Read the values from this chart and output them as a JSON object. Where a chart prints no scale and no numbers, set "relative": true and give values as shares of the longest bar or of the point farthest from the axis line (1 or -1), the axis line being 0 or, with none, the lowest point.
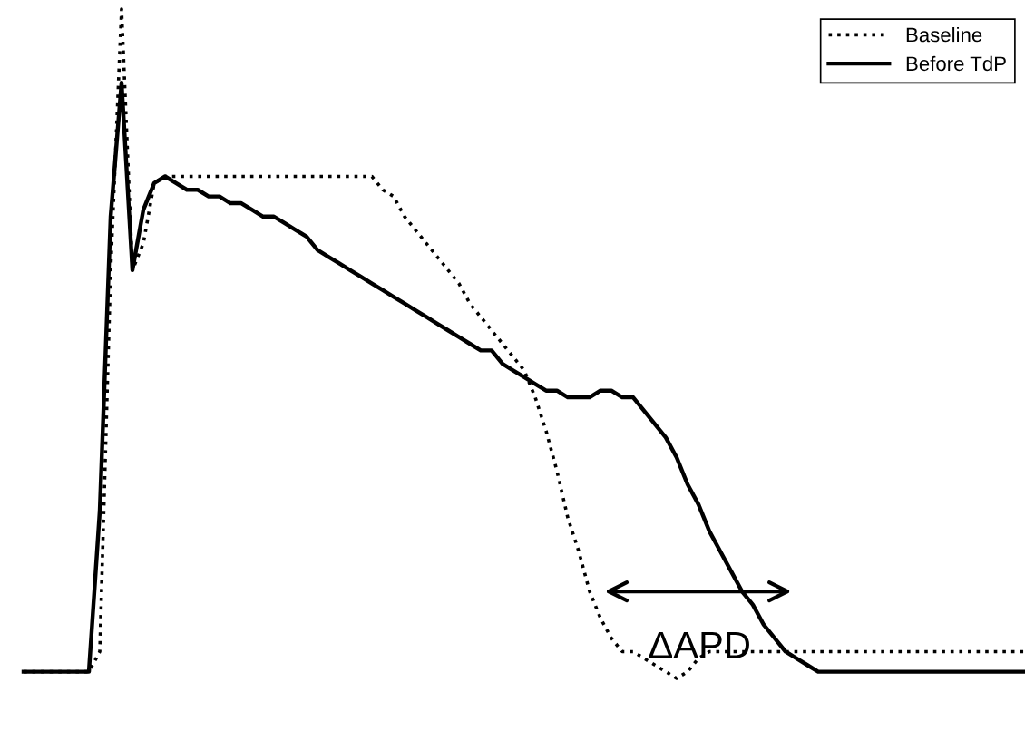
{
  "chart_data": {
    "type": "line",
    "relative": true,
    "categories": [
      null,
      null,
      null,
      null,
      null,
      null,
      null,
      null,
      null,
      null,
      null,
      null,
      null,
      null,
      null,
      null,
      null,
      null,
      null,
      null,
      null,
      null,
      null,
      null,
      null,
      null,
      null,
      null,
      null,
      null,
      null,
      null,
      null,
      null,
      null,
      null,
      null,
      null,
      null,
      null,
      null,
      null,
      null,
      null,
      null,
      null,
      null,
      null,
      null,
      null,
      null,
      null,
      null,
      null,
      null,
      null,
      null,
      null,
      null,
      null,
      null,
      null,
      null,
      null,
      null,
      null,
      null,
      null,
      null,
      null,
      null,
      null,
      null,
      null,
      null,
      null,
      null,
      null,
      null,
      null,
      null,
      null,
      null,
      null,
      null,
      null,
      null,
      null,
      null,
      null,
      null,
      null,
      null
    ],
    "series": [
      {
        "name": "Baseline",
        "color": "#000000",
        "line_style": "dotted",
        "values": [
          0.01,
          0.01,
          0.01,
          0.01,
          0.01,
          0.01,
          0.01,
          0.04,
          0.61,
          1.0,
          0.61,
          0.65,
          0.74,
          0.75,
          0.75,
          0.75,
          0.75,
          0.75,
          0.75,
          0.75,
          0.75,
          0.75,
          0.75,
          0.75,
          0.75,
          0.75,
          0.75,
          0.75,
          0.75,
          0.75,
          0.75,
          0.75,
          0.75,
          0.73,
          0.72,
          0.69,
          0.67,
          0.65,
          0.63,
          0.61,
          0.59,
          0.56,
          0.54,
          0.52,
          0.5,
          0.48,
          0.46,
          0.42,
          0.37,
          0.31,
          0.24,
          0.19,
          0.13,
          0.09,
          0.06,
          0.04,
          0.04,
          0.03,
          0.02,
          0.01,
          0.0,
          0.01,
          0.03,
          0.04,
          0.04,
          0.04,
          0.04,
          0.04,
          0.04,
          0.04,
          0.04,
          0.04,
          0.04,
          0.04,
          0.04,
          0.04,
          0.04,
          0.04,
          0.04,
          0.04,
          0.04,
          0.04,
          0.04,
          0.04,
          0.04,
          0.04,
          0.04,
          0.04,
          0.04,
          0.04,
          0.04,
          0.04,
          0.04
        ]
      },
      {
        "name": "Before TdP",
        "color": "#000000",
        "line_style": "solid",
        "values": [
          0.01,
          0.01,
          0.01,
          0.01,
          0.01,
          0.01,
          0.01,
          0.25,
          0.69,
          0.89,
          0.61,
          0.7,
          0.74,
          0.75,
          0.74,
          0.73,
          0.73,
          0.72,
          0.72,
          0.71,
          0.71,
          0.7,
          0.69,
          0.69,
          0.68,
          0.67,
          0.66,
          0.64,
          0.63,
          0.62,
          0.61,
          0.6,
          0.59,
          0.58,
          0.57,
          0.56,
          0.55,
          0.54,
          0.53,
          0.52,
          0.51,
          0.5,
          0.49,
          0.49,
          0.47,
          0.46,
          0.45,
          0.44,
          0.43,
          0.43,
          0.42,
          0.42,
          0.42,
          0.43,
          0.43,
          0.42,
          0.42,
          0.4,
          0.38,
          0.36,
          0.33,
          0.29,
          0.26,
          0.22,
          0.19,
          0.16,
          0.13,
          0.11,
          0.08,
          0.06,
          0.04,
          0.03,
          0.02,
          0.01,
          0.01,
          0.01,
          0.01,
          0.01,
          0.01,
          0.01,
          0.01,
          0.01,
          0.01,
          0.01,
          0.01,
          0.01,
          0.01,
          0.01,
          0.01,
          0.01,
          0.01,
          0.01,
          0.01
        ]
      }
    ],
    "annotations": [
      "ΔAPD"
    ],
    "legend": "top right",
    "marker": "none"
  }
}
